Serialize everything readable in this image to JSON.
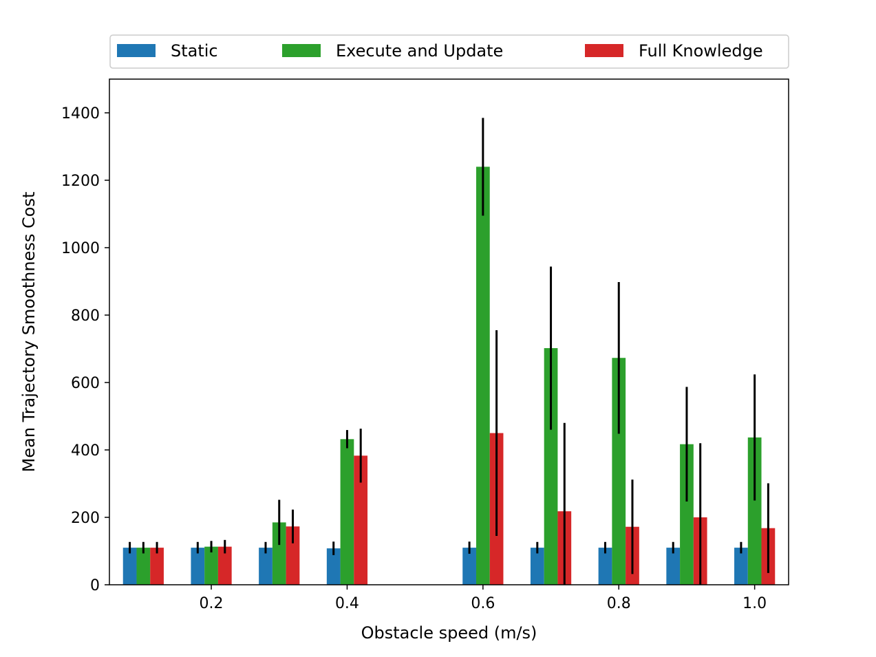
{
  "chart_data": {
    "type": "bar",
    "title": "",
    "xlabel": "Obstacle speed (m/s)",
    "ylabel": "Mean Trajectory Smoothness Cost",
    "xlim": [
      0.05,
      1.05
    ],
    "ylim": [
      0,
      1500
    ],
    "x_ticks": [
      0.2,
      0.4,
      0.6,
      0.8,
      1.0
    ],
    "x_tick_labels": [
      "0.2",
      "0.4",
      "0.6",
      "0.8",
      "1.0"
    ],
    "y_ticks": [
      0,
      200,
      400,
      600,
      800,
      1000,
      1200,
      1400
    ],
    "y_tick_labels": [
      "0",
      "200",
      "400",
      "600",
      "800",
      "1000",
      "1200",
      "1400"
    ],
    "x": [
      0.1,
      0.2,
      0.3,
      0.4,
      0.6,
      0.7,
      0.8,
      0.9,
      1.0
    ],
    "bar_width": 0.02,
    "grid": false,
    "legend_position": "top",
    "series": [
      {
        "name": "Static",
        "color": "#1f77b4",
        "values": [
          110,
          110,
          110,
          108,
          110,
          110,
          110,
          110,
          110
        ],
        "errors": [
          17,
          17,
          17,
          20,
          18,
          17,
          17,
          17,
          17
        ]
      },
      {
        "name": "Execute and Update",
        "color": "#2ca02c",
        "values": [
          110,
          113,
          185,
          432,
          1240,
          702,
          673,
          417,
          437
        ],
        "errors": [
          17,
          17,
          67,
          27,
          145,
          242,
          225,
          170,
          187
        ]
      },
      {
        "name": "Full Knowledge",
        "color": "#d62728",
        "values": [
          110,
          113,
          173,
          383,
          450,
          218,
          172,
          200,
          168
        ],
        "errors": [
          17,
          20,
          50,
          80,
          305,
          262,
          140,
          220,
          133
        ]
      }
    ]
  }
}
